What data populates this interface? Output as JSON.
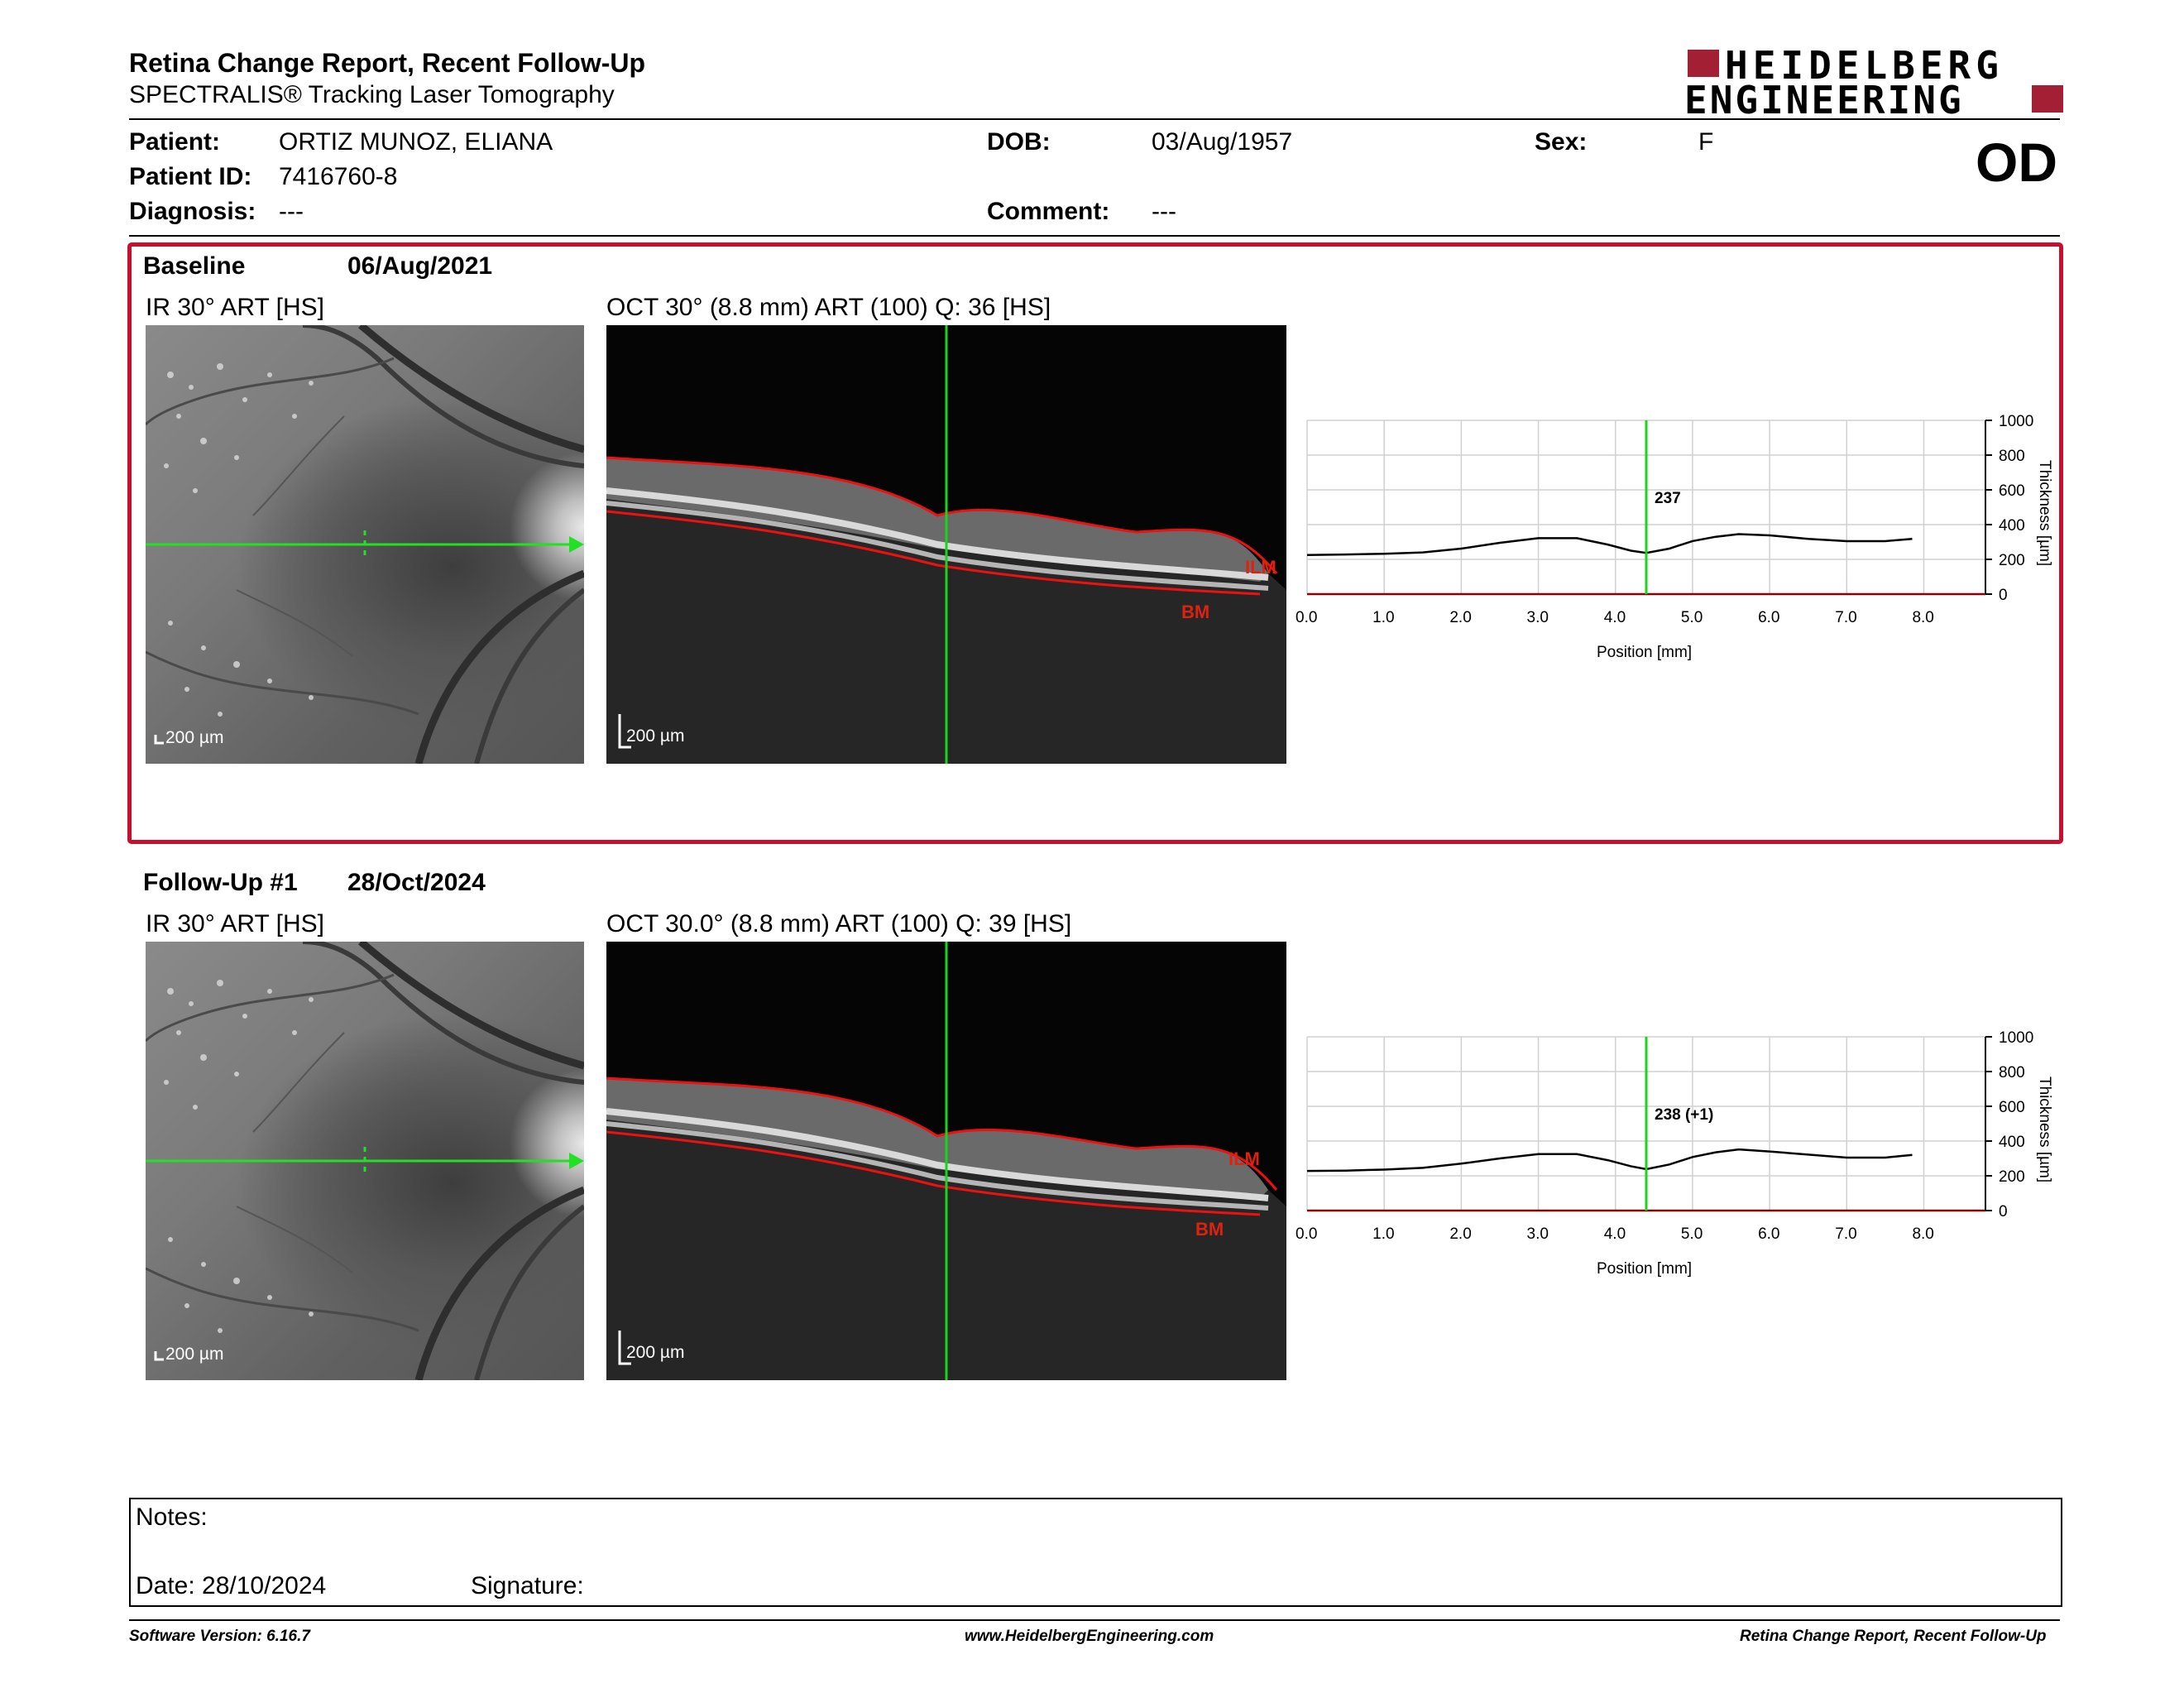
{
  "header": {
    "title": "Retina Change Report, Recent Follow-Up",
    "subtitle": "SPECTRALIS® Tracking Laser Tomography",
    "logo_line1": "HEIDELBERG",
    "logo_line2": "ENGINEERING",
    "brand_color": "#a31f34"
  },
  "patient": {
    "patient_label": "Patient:",
    "patient_value": "ORTIZ MUNOZ, ELIANA",
    "id_label": "Patient ID:",
    "id_value": "7416760-8",
    "diagnosis_label": "Diagnosis:",
    "diagnosis_value": "---",
    "dob_label": "DOB:",
    "dob_value": "03/Aug/1957",
    "comment_label": "Comment:",
    "comment_value": "---",
    "sex_label": "Sex:",
    "sex_value": "F",
    "eye": "OD"
  },
  "baseline": {
    "title": "Baseline",
    "date": "06/Aug/2021",
    "ir_label": "IR 30° ART [HS]",
    "oct_label": "OCT 30° (8.8 mm) ART (100) Q: 36 [HS]",
    "scale": "200 µm",
    "ilm": "ILM",
    "bm": "BM",
    "highlight_color": "#c8102e"
  },
  "followup": {
    "title": "Follow-Up #1",
    "date": "28/Oct/2024",
    "ir_label": "IR 30° ART [HS]",
    "oct_label": "OCT 30.0° (8.8 mm) ART (100) Q: 39 [HS]",
    "scale": "200 µm",
    "ilm": "ILM",
    "bm": "BM"
  },
  "chart_data": [
    {
      "type": "line",
      "xlabel": "Position [mm]",
      "ylabel": "Thickness [µm]",
      "xlim": [
        0,
        8.8
      ],
      "ylim": [
        0,
        1000
      ],
      "x_ticks": [
        "0.0",
        "1.0",
        "2.0",
        "3.0",
        "4.0",
        "5.0",
        "6.0",
        "7.0",
        "8.0"
      ],
      "y_ticks": [
        "0",
        "200",
        "400",
        "600",
        "800",
        "1000"
      ],
      "marker_x": 4.4,
      "marker_label": "237",
      "marker_color": "#1dd41d",
      "series": [
        {
          "x": [
            0,
            0.5,
            1,
            1.5,
            2,
            2.5,
            3,
            3.5,
            3.9,
            4.2,
            4.4,
            4.7,
            5.0,
            5.3,
            5.6,
            6.0,
            6.5,
            7.0,
            7.5,
            7.85
          ],
          "values": [
            225,
            228,
            232,
            240,
            262,
            295,
            322,
            322,
            285,
            250,
            237,
            262,
            305,
            330,
            345,
            338,
            318,
            305,
            305,
            318
          ]
        }
      ]
    },
    {
      "type": "line",
      "xlabel": "Position [mm]",
      "ylabel": "Thickness [µm]",
      "xlim": [
        0,
        8.8
      ],
      "ylim": [
        0,
        1000
      ],
      "x_ticks": [
        "0.0",
        "1.0",
        "2.0",
        "3.0",
        "4.0",
        "5.0",
        "6.0",
        "7.0",
        "8.0"
      ],
      "y_ticks": [
        "0",
        "200",
        "400",
        "600",
        "800",
        "1000"
      ],
      "marker_x": 4.4,
      "marker_label": "238 (+1)",
      "marker_color": "#1dd41d",
      "series": [
        {
          "x": [
            0,
            0.5,
            1,
            1.5,
            2,
            2.5,
            3,
            3.5,
            3.9,
            4.2,
            4.4,
            4.7,
            5.0,
            5.3,
            5.6,
            6.0,
            6.5,
            7.0,
            7.5,
            7.85
          ],
          "values": [
            228,
            230,
            236,
            246,
            270,
            300,
            325,
            325,
            290,
            255,
            238,
            265,
            308,
            335,
            352,
            340,
            322,
            305,
            305,
            320
          ]
        }
      ]
    }
  ],
  "notes": {
    "notes_label": "Notes:",
    "date_label": "Date: 28/10/2024",
    "signature_label": "Signature:"
  },
  "footer": {
    "software": "Software Version: 6.16.7",
    "website": "www.HeidelbergEngineering.com",
    "report": "Retina Change Report, Recent Follow-Up"
  }
}
